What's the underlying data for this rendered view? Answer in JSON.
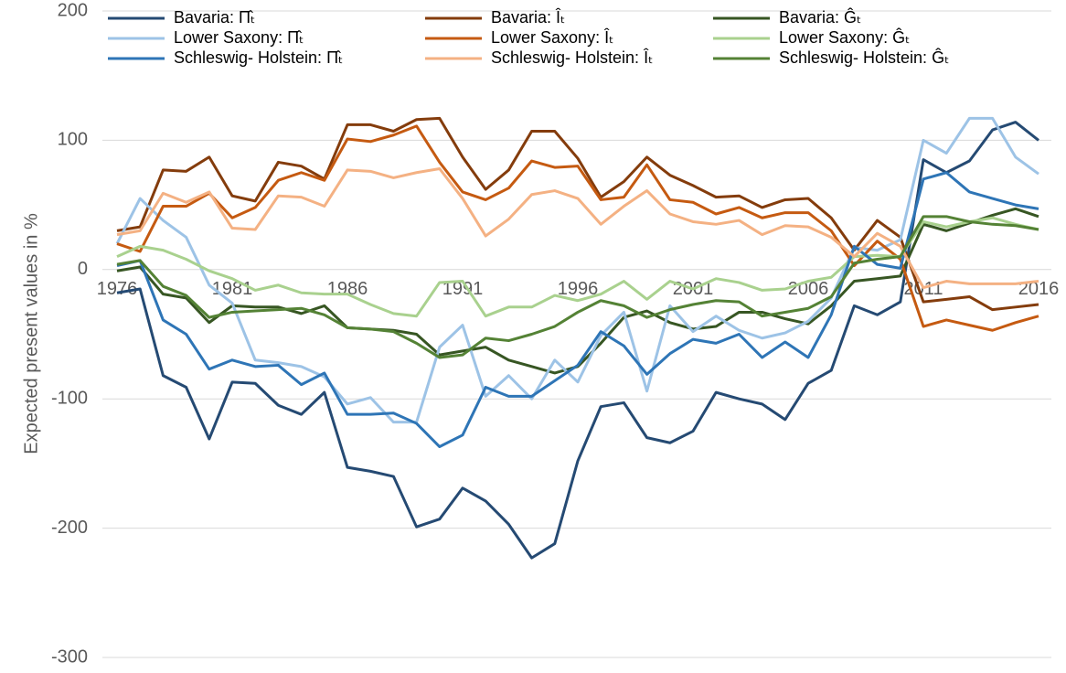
{
  "chart_data": {
    "type": "line",
    "y_label": "Expected present values in %",
    "x": [
      1976,
      1977,
      1978,
      1979,
      1980,
      1981,
      1982,
      1983,
      1984,
      1985,
      1986,
      1987,
      1988,
      1989,
      1990,
      1991,
      1992,
      1993,
      1994,
      1995,
      1996,
      1997,
      1998,
      1999,
      2000,
      2001,
      2002,
      2003,
      2004,
      2005,
      2006,
      2007,
      2008,
      2009,
      2010,
      2011,
      2012,
      2013,
      2014,
      2015,
      2016
    ],
    "xlim": [
      1976,
      2016
    ],
    "xticks": [
      1976,
      1981,
      1986,
      1991,
      1996,
      2001,
      2006,
      2011,
      2016
    ],
    "ylim": [
      -300,
      200
    ],
    "yticks": [
      200,
      100,
      0,
      -100,
      -200,
      -300
    ],
    "grid": true,
    "series": [
      {
        "name": "Bavaria: Π̂ₜ",
        "color": "#254a73",
        "values": [
          -18,
          -15,
          -82,
          -91,
          -131,
          -87,
          -88,
          -105,
          -112,
          -95,
          -153,
          -156,
          -160,
          -199,
          -193,
          -169,
          -179,
          -197,
          -223,
          -212,
          -148,
          -106,
          -103,
          -130,
          -134,
          -125,
          -95,
          -100,
          -104,
          -116,
          -88,
          -78,
          -28,
          -35,
          -25,
          85,
          75,
          84,
          108,
          114,
          100
        ]
      },
      {
        "name": "Bavaria: Îₜ",
        "color": "#843c0c",
        "values": [
          30,
          33,
          77,
          76,
          87,
          57,
          53,
          83,
          80,
          70,
          112,
          112,
          107,
          116,
          117,
          87,
          62,
          77,
          107,
          107,
          86,
          56,
          68,
          87,
          73,
          65,
          56,
          57,
          48,
          54,
          55,
          40,
          15,
          38,
          25,
          -25,
          -23,
          -21,
          -31,
          -29,
          -27
        ]
      },
      {
        "name": "Bavaria: Ĝₜ",
        "color": "#375623",
        "values": [
          -1,
          2,
          -19,
          -22,
          -41,
          -28,
          -29,
          -29,
          -34,
          -28,
          -45,
          -46,
          -47,
          -50,
          -66,
          -63,
          -60,
          -70,
          -75,
          -80,
          -75,
          -57,
          -37,
          -32,
          -41,
          -46,
          -44,
          -33,
          -33,
          -38,
          -42,
          -28,
          -9,
          -7,
          -5,
          35,
          30,
          36,
          42,
          47,
          41
        ]
      },
      {
        "name": "Lower Saxony: Π̂ₜ",
        "color": "#9dc3e6",
        "values": [
          20,
          55,
          38,
          25,
          -12,
          -26,
          -70,
          -72,
          -75,
          -83,
          -104,
          -99,
          -118,
          -118,
          -60,
          -43,
          -98,
          -82,
          -100,
          -70,
          -87,
          -51,
          -33,
          -94,
          -28,
          -48,
          -36,
          -47,
          -53,
          -49,
          -40,
          -22,
          17,
          15,
          23,
          100,
          90,
          117,
          117,
          87,
          74
        ]
      },
      {
        "name": "Lower Saxony: Îₜ",
        "color": "#c55a11",
        "values": [
          20,
          14,
          49,
          49,
          59,
          40,
          48,
          69,
          75,
          69,
          101,
          99,
          104,
          111,
          83,
          60,
          54,
          63,
          84,
          79,
          80,
          54,
          56,
          81,
          54,
          52,
          43,
          48,
          40,
          44,
          44,
          30,
          3,
          22,
          8,
          -44,
          -39,
          -43,
          -47,
          -41,
          -36
        ]
      },
      {
        "name": "Lower Saxony: Ĝₜ",
        "color": "#a9d18e",
        "values": [
          10,
          18,
          15,
          8,
          -1,
          -7,
          -16,
          -12,
          -18,
          -19,
          -19,
          -27,
          -34,
          -36,
          -10,
          -9,
          -36,
          -29,
          -29,
          -20,
          -24,
          -19,
          -9,
          -23,
          -9,
          -15,
          -7,
          -10,
          -16,
          -15,
          -9,
          -6,
          10,
          11,
          10,
          37,
          33,
          37,
          40,
          35,
          31
        ]
      },
      {
        "name": "Schleswig- Holstein: Π̂ₜ",
        "color": "#2e75b6",
        "values": [
          3,
          7,
          -39,
          -50,
          -77,
          -70,
          -75,
          -74,
          -89,
          -80,
          -112,
          -112,
          -111,
          -119,
          -137,
          -128,
          -91,
          -98,
          -98,
          -86,
          -74,
          -48,
          -59,
          -81,
          -65,
          -54,
          -57,
          -50,
          -68,
          -56,
          -68,
          -35,
          18,
          4,
          1,
          70,
          75,
          60,
          55,
          50,
          47
        ]
      },
      {
        "name": "Schleswig- Holstein: Îₜ",
        "color": "#f4b183",
        "values": [
          27,
          30,
          59,
          52,
          60,
          32,
          31,
          57,
          56,
          49,
          77,
          76,
          71,
          75,
          78,
          55,
          26,
          39,
          58,
          61,
          55,
          35,
          49,
          61,
          43,
          37,
          35,
          38,
          27,
          34,
          33,
          25,
          10,
          28,
          18,
          -14,
          -9,
          -11,
          -11,
          -11,
          -9
        ]
      },
      {
        "name": "Schleswig- Holstein: Ĝₜ",
        "color": "#548235",
        "values": [
          4,
          7,
          -13,
          -20,
          -37,
          -33,
          -32,
          -31,
          -30,
          -35,
          -45,
          -46,
          -48,
          -57,
          -68,
          -66,
          -53,
          -55,
          -50,
          -44,
          -33,
          -24,
          -28,
          -37,
          -31,
          -27,
          -24,
          -25,
          -36,
          -33,
          -30,
          -21,
          5,
          8,
          10,
          41,
          41,
          37,
          35,
          34,
          31
        ]
      }
    ]
  }
}
